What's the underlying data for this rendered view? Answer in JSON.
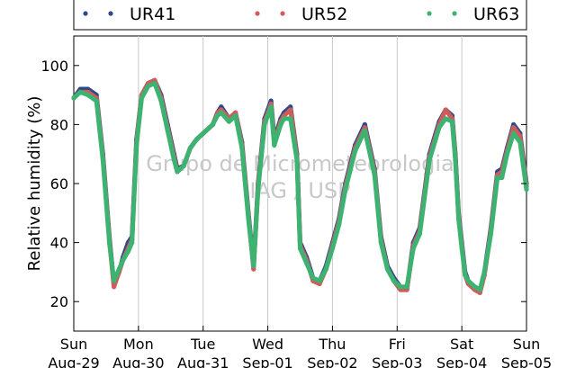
{
  "chart_data": {
    "type": "scatter",
    "ylabel": "Relative humidity (%)",
    "xlabel": "",
    "ylim": [
      10,
      110
    ],
    "xlim": [
      0,
      7
    ],
    "yticks": [
      20,
      40,
      60,
      80,
      100
    ],
    "x_tick_labels": [
      {
        "day": "Sun",
        "date": "Aug-29"
      },
      {
        "day": "Mon",
        "date": "Aug-30"
      },
      {
        "day": "Tue",
        "date": "Aug-31"
      },
      {
        "day": "Wed",
        "date": "Sep-01"
      },
      {
        "day": "Thu",
        "date": "Sep-02"
      },
      {
        "day": "Fri",
        "date": "Sep-03"
      },
      {
        "day": "Sat",
        "date": "Sep-04"
      },
      {
        "day": "Sun",
        "date": "Sep-05"
      }
    ],
    "grid": "vertical",
    "legend_position": "top",
    "watermark": [
      "Grupo de Micrometeorologia",
      "IAG / USP"
    ],
    "series": [
      {
        "name": "UR41",
        "color": "#2b4a8a",
        "x": [
          0,
          0.1,
          0.22,
          0.35,
          0.45,
          0.55,
          0.62,
          0.7,
          0.76,
          0.84,
          0.9,
          0.97,
          1.05,
          1.15,
          1.25,
          1.35,
          1.45,
          1.55,
          1.6,
          1.7,
          1.8,
          1.9,
          2.0,
          2.1,
          2.15,
          2.22,
          2.28,
          2.4,
          2.5,
          2.6,
          2.7,
          2.78,
          2.85,
          2.95,
          3.0,
          3.05,
          3.1,
          3.2,
          3.25,
          3.35,
          3.45,
          3.5,
          3.6,
          3.7,
          3.8,
          3.9,
          4.0,
          4.1,
          4.2,
          4.35,
          4.5,
          4.65,
          4.75,
          4.85,
          4.95,
          5.05,
          5.15,
          5.25,
          5.35,
          5.5,
          5.65,
          5.75,
          5.85,
          5.9,
          5.95,
          6.0,
          6.05,
          6.1,
          6.2,
          6.28,
          6.35,
          6.45,
          6.55,
          6.62,
          6.7,
          6.8,
          6.9,
          7.0
        ],
        "y": [
          89,
          92,
          92,
          90,
          70,
          42,
          26,
          30,
          35,
          40,
          42,
          75,
          90,
          94,
          95,
          90,
          80,
          70,
          65,
          66,
          72,
          75,
          77,
          79,
          80,
          84,
          86,
          82,
          84,
          74,
          50,
          32,
          60,
          82,
          85,
          88,
          75,
          82,
          84,
          86,
          70,
          40,
          35,
          28,
          27,
          32,
          40,
          48,
          60,
          73,
          80,
          65,
          42,
          32,
          28,
          25,
          24,
          40,
          45,
          70,
          81,
          85,
          83,
          70,
          50,
          40,
          30,
          27,
          25,
          24,
          30,
          45,
          64,
          65,
          72,
          80,
          77,
          60
        ]
      },
      {
        "name": "UR52",
        "color": "#d05b5b",
        "x": [
          0,
          0.1,
          0.22,
          0.35,
          0.45,
          0.55,
          0.62,
          0.7,
          0.76,
          0.84,
          0.9,
          0.97,
          1.05,
          1.15,
          1.25,
          1.35,
          1.45,
          1.55,
          1.6,
          1.7,
          1.8,
          1.9,
          2.0,
          2.1,
          2.15,
          2.22,
          2.28,
          2.4,
          2.5,
          2.6,
          2.7,
          2.78,
          2.85,
          2.95,
          3.0,
          3.05,
          3.1,
          3.2,
          3.25,
          3.35,
          3.45,
          3.5,
          3.6,
          3.7,
          3.8,
          3.9,
          4.0,
          4.1,
          4.2,
          4.35,
          4.5,
          4.65,
          4.75,
          4.85,
          4.95,
          5.05,
          5.15,
          5.25,
          5.35,
          5.5,
          5.65,
          5.75,
          5.85,
          5.9,
          5.95,
          6.0,
          6.05,
          6.1,
          6.2,
          6.28,
          6.35,
          6.45,
          6.55,
          6.62,
          6.7,
          6.8,
          6.9,
          7.0
        ],
        "y": [
          89,
          91,
          91,
          89,
          69,
          41,
          25,
          30,
          34,
          38,
          41,
          74,
          90,
          94,
          95,
          89,
          79,
          69,
          64,
          66,
          72,
          75,
          77,
          79,
          80,
          84,
          85,
          82,
          84,
          73,
          49,
          31,
          59,
          81,
          84,
          87,
          74,
          81,
          83,
          85,
          69,
          39,
          34,
          27,
          26,
          31,
          39,
          47,
          59,
          72,
          79,
          64,
          41,
          31,
          27,
          24,
          24,
          39,
          44,
          69,
          80,
          85,
          82,
          69,
          49,
          39,
          29,
          26,
          24,
          23,
          29,
          44,
          63,
          64,
          71,
          79,
          76,
          59
        ]
      },
      {
        "name": "UR63",
        "color": "#3cb371",
        "x": [
          0,
          0.1,
          0.22,
          0.35,
          0.45,
          0.55,
          0.62,
          0.7,
          0.76,
          0.84,
          0.9,
          0.97,
          1.05,
          1.15,
          1.25,
          1.35,
          1.45,
          1.55,
          1.6,
          1.7,
          1.8,
          1.9,
          2.0,
          2.1,
          2.15,
          2.22,
          2.28,
          2.4,
          2.5,
          2.6,
          2.7,
          2.78,
          2.85,
          2.95,
          3.0,
          3.05,
          3.1,
          3.2,
          3.25,
          3.35,
          3.45,
          3.5,
          3.6,
          3.7,
          3.8,
          3.9,
          4.0,
          4.1,
          4.2,
          4.35,
          4.5,
          4.65,
          4.75,
          4.85,
          4.95,
          5.05,
          5.15,
          5.25,
          5.35,
          5.5,
          5.65,
          5.75,
          5.85,
          5.9,
          5.95,
          6.0,
          6.05,
          6.1,
          6.2,
          6.28,
          6.35,
          6.45,
          6.55,
          6.62,
          6.7,
          6.8,
          6.9,
          7.0
        ],
        "y": [
          89,
          91,
          90,
          88,
          68,
          40,
          27,
          31,
          34,
          37,
          40,
          73,
          89,
          93,
          94,
          88,
          78,
          68,
          64,
          66,
          72,
          75,
          77,
          79,
          80,
          83,
          84,
          81,
          83,
          72,
          48,
          32,
          58,
          80,
          83,
          86,
          73,
          80,
          82,
          82,
          68,
          38,
          33,
          28,
          27,
          31,
          38,
          46,
          58,
          71,
          78,
          63,
          40,
          31,
          27,
          25,
          25,
          38,
          43,
          68,
          79,
          82,
          81,
          68,
          48,
          38,
          29,
          27,
          25,
          24,
          30,
          43,
          62,
          62,
          70,
          77,
          74,
          58
        ]
      }
    ]
  }
}
